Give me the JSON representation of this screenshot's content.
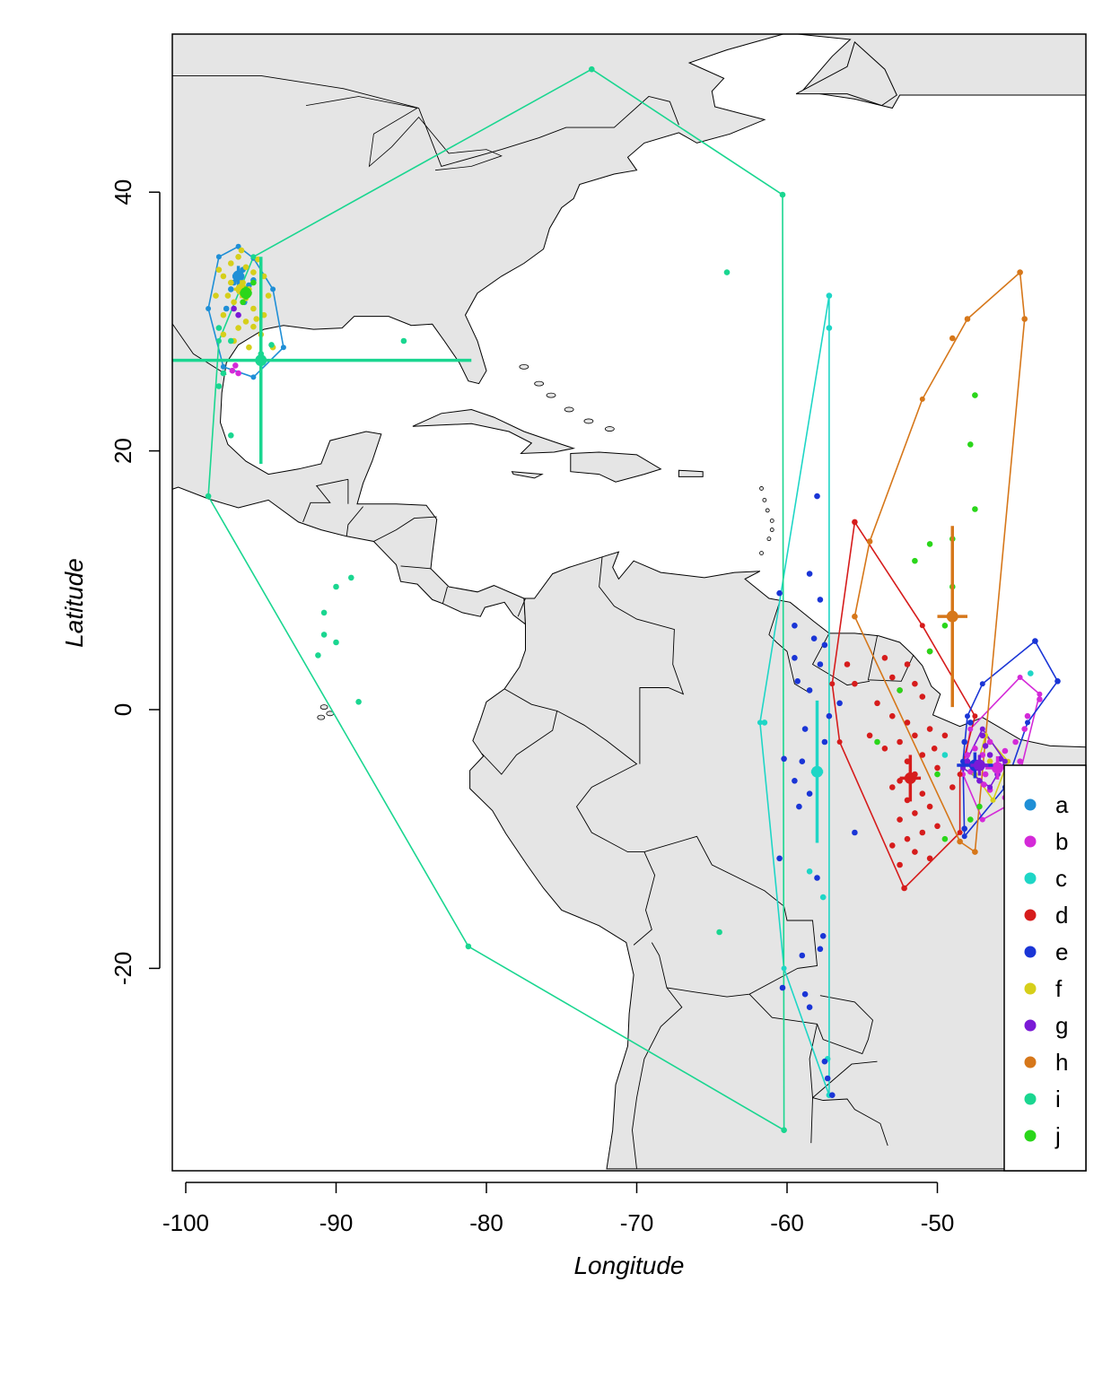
{
  "chart_data": {
    "type": "scatter",
    "xlabel": "Longitude",
    "ylabel": "Latitude",
    "xlim": [
      -101,
      -40
    ],
    "ylim": [
      -35.5,
      52.5
    ],
    "xticks": [
      "-100",
      "-90",
      "-80",
      "-70",
      "-60",
      "-50"
    ],
    "yticks": [
      "-20",
      "0",
      "20",
      "40"
    ],
    "legend_position": "bottom-right",
    "grid": false,
    "colors": {
      "land": "#e5e5e5",
      "coast": "#000000"
    },
    "series": [
      {
        "name": "a",
        "color": "#1f8fd6",
        "points": [
          [
            -96.5,
            33.5
          ],
          [
            -96.8,
            33.0
          ],
          [
            -95.8,
            32.8
          ],
          [
            -96.2,
            34.0
          ],
          [
            -97.0,
            32.5
          ],
          [
            -95.5,
            33.2
          ],
          [
            -96.1,
            31.5
          ],
          [
            -97.3,
            31.0
          ]
        ],
        "hull": [
          [
            -97.8,
            35.0
          ],
          [
            -96.5,
            35.8
          ],
          [
            -95.5,
            34.9
          ],
          [
            -94.2,
            32.5
          ],
          [
            -93.5,
            28.0
          ],
          [
            -95.5,
            25.7
          ],
          [
            -97.5,
            26.5
          ],
          [
            -98.5,
            31.0
          ]
        ],
        "mean": [
          -96.5,
          33.5
        ],
        "sd": [
          0.4,
          0.8
        ]
      },
      {
        "name": "b",
        "color": "#d42ad8",
        "points": [
          [
            -47.0,
            -3.5
          ],
          [
            -46.5,
            -2.5
          ],
          [
            -47.5,
            -3.0
          ],
          [
            -46.0,
            -4.5
          ],
          [
            -46.8,
            -5.0
          ],
          [
            -45.5,
            -3.2
          ],
          [
            -44.8,
            -2.5
          ],
          [
            -44.2,
            -1.5
          ],
          [
            -44.0,
            -0.5
          ],
          [
            -43.2,
            0.8
          ],
          [
            -45.0,
            -5.5
          ],
          [
            -46.5,
            -6.2
          ],
          [
            -47.8,
            -4.8
          ],
          [
            -48.0,
            -3.5
          ],
          [
            -45.5,
            -6.8
          ],
          [
            -46.9,
            -5.8
          ],
          [
            -44.5,
            -4.0
          ],
          [
            -96.7,
            26.6
          ],
          [
            -96.9,
            26.2
          ],
          [
            -96.5,
            26.0
          ]
        ],
        "hull": [
          [
            -44.5,
            2.5
          ],
          [
            -43.2,
            1.2
          ],
          [
            -45.0,
            -7.2
          ],
          [
            -47.0,
            -8.5
          ],
          [
            -48.3,
            -5.0
          ],
          [
            -47.8,
            -1.5
          ]
        ],
        "mean": [
          -46.0,
          -4.5
        ],
        "sd": [
          0.8,
          0.9
        ]
      },
      {
        "name": "c",
        "color": "#1ed6c6",
        "points": [
          [
            -57.2,
            32.0
          ],
          [
            -57.2,
            29.5
          ],
          [
            -58.0,
            -5.0
          ],
          [
            -58.5,
            -12.5
          ],
          [
            -57.6,
            -14.5
          ],
          [
            -57.3,
            -27.0
          ],
          [
            -57.2,
            -29.8
          ],
          [
            -61.5,
            -1.0
          ],
          [
            -49.5,
            -3.5
          ],
          [
            -43.8,
            2.8
          ],
          [
            -47.5,
            -4.2
          ]
        ],
        "hull": [
          [
            -57.2,
            32.0
          ],
          [
            -61.8,
            -1.0
          ],
          [
            -60.2,
            -20.0
          ],
          [
            -57.2,
            -29.8
          ]
        ],
        "mean": [
          -58.0,
          -4.8
        ],
        "sd": [
          0.4,
          5.5
        ]
      },
      {
        "name": "d",
        "color": "#d61c1c",
        "points": [
          [
            -55.5,
            14.5
          ],
          [
            -53.5,
            4.0
          ],
          [
            -52.0,
            3.5
          ],
          [
            -50.5,
            4.5
          ],
          [
            -53.0,
            2.5
          ],
          [
            -51.5,
            2.0
          ],
          [
            -52.5,
            1.5
          ],
          [
            -51.0,
            1.0
          ],
          [
            -54.0,
            0.5
          ],
          [
            -53.0,
            -0.5
          ],
          [
            -52.0,
            -1.0
          ],
          [
            -50.5,
            -1.5
          ],
          [
            -51.5,
            -2.0
          ],
          [
            -52.5,
            -2.5
          ],
          [
            -53.5,
            -3.0
          ],
          [
            -51.0,
            -3.5
          ],
          [
            -52.0,
            -4.0
          ],
          [
            -50.0,
            -4.5
          ],
          [
            -51.5,
            -5.0
          ],
          [
            -52.5,
            -5.5
          ],
          [
            -53.0,
            -6.0
          ],
          [
            -51.0,
            -6.5
          ],
          [
            -52.0,
            -7.0
          ],
          [
            -50.5,
            -7.5
          ],
          [
            -51.5,
            -8.0
          ],
          [
            -52.5,
            -8.5
          ],
          [
            -50.0,
            -9.0
          ],
          [
            -51.0,
            -9.5
          ],
          [
            -52.0,
            -10.0
          ],
          [
            -53.0,
            -10.5
          ],
          [
            -51.5,
            -11.0
          ],
          [
            -50.5,
            -11.5
          ],
          [
            -52.5,
            -12.0
          ],
          [
            -52.2,
            -13.8
          ],
          [
            -54.5,
            -2.0
          ],
          [
            -55.5,
            2.0
          ],
          [
            -56.0,
            3.5
          ],
          [
            -49.5,
            -2.0
          ],
          [
            -49.0,
            -6.0
          ],
          [
            -50.2,
            -3.0
          ]
        ],
        "hull": [
          [
            -55.5,
            14.5
          ],
          [
            -51.0,
            6.5
          ],
          [
            -47.5,
            -0.5
          ],
          [
            -48.5,
            -5.0
          ],
          [
            -48.5,
            -9.5
          ],
          [
            -52.2,
            -13.8
          ],
          [
            -56.5,
            -2.5
          ],
          [
            -57.0,
            2.0
          ]
        ],
        "mean": [
          -51.8,
          -5.3
        ],
        "sd": [
          0.7,
          1.8
        ]
      },
      {
        "name": "e",
        "color": "#1a35d6",
        "points": [
          [
            -58.0,
            16.5
          ],
          [
            -58.5,
            10.5
          ],
          [
            -57.8,
            8.5
          ],
          [
            -60.5,
            9.0
          ],
          [
            -59.5,
            6.5
          ],
          [
            -57.5,
            5.0
          ],
          [
            -58.2,
            5.5
          ],
          [
            -59.5,
            4.0
          ],
          [
            -57.8,
            3.5
          ],
          [
            -59.3,
            2.2
          ],
          [
            -58.5,
            1.5
          ],
          [
            -57.2,
            -0.5
          ],
          [
            -58.8,
            -1.5
          ],
          [
            -57.5,
            -2.5
          ],
          [
            -60.2,
            -3.8
          ],
          [
            -59.0,
            -4.0
          ],
          [
            -59.5,
            -5.5
          ],
          [
            -58.5,
            -6.5
          ],
          [
            -59.2,
            -7.5
          ],
          [
            -60.5,
            -11.5
          ],
          [
            -58.0,
            -13.0
          ],
          [
            -57.6,
            -17.5
          ],
          [
            -57.8,
            -18.5
          ],
          [
            -58.8,
            -22.0
          ],
          [
            -58.5,
            -23.0
          ],
          [
            -59.0,
            -19.0
          ],
          [
            -57.5,
            -27.2
          ],
          [
            -57.0,
            -29.8
          ],
          [
            -57.3,
            -28.5
          ],
          [
            -55.5,
            -9.5
          ],
          [
            -56.5,
            0.5
          ],
          [
            -60.3,
            -21.5
          ],
          [
            -47.8,
            -1.0
          ],
          [
            -48.2,
            -2.5
          ],
          [
            -43.5,
            5.3
          ],
          [
            -42.0,
            2.2
          ],
          [
            -48.2,
            -9.2
          ]
        ],
        "hull": [
          [
            -43.5,
            5.3
          ],
          [
            -42.0,
            2.2
          ],
          [
            -44.0,
            -1.0
          ],
          [
            -45.5,
            -6.0
          ],
          [
            -48.2,
            -9.8
          ],
          [
            -48.3,
            -4.0
          ],
          [
            -48.0,
            -0.5
          ],
          [
            -47.0,
            2.0
          ]
        ],
        "mean": [
          -47.5,
          -4.3
        ],
        "sd": [
          1.2,
          1.0
        ]
      },
      {
        "name": "f",
        "color": "#d6cf1a",
        "points": [
          [
            -97.0,
            34.5
          ],
          [
            -96.5,
            35.0
          ],
          [
            -96.0,
            34.2
          ],
          [
            -95.5,
            33.8
          ],
          [
            -97.5,
            33.5
          ],
          [
            -96.2,
            33.0
          ],
          [
            -95.8,
            32.5
          ],
          [
            -97.2,
            32.0
          ],
          [
            -96.8,
            31.5
          ],
          [
            -95.5,
            31.0
          ],
          [
            -94.8,
            30.5
          ],
          [
            -96.0,
            30.0
          ],
          [
            -97.5,
            30.5
          ],
          [
            -98.0,
            32.0
          ],
          [
            -96.5,
            29.5
          ],
          [
            -95.0,
            29.0
          ],
          [
            -94.5,
            32.0
          ],
          [
            -94.8,
            33.5
          ],
          [
            -97.8,
            34.0
          ],
          [
            -96.3,
            35.5
          ],
          [
            -95.2,
            34.8
          ],
          [
            -97.0,
            33.0
          ],
          [
            -96.0,
            31.8
          ],
          [
            -95.3,
            30.2
          ],
          [
            -96.8,
            28.5
          ],
          [
            -95.8,
            28.0
          ],
          [
            -94.2,
            28.0
          ],
          [
            -97.5,
            29.0
          ],
          [
            -96.0,
            32.2
          ],
          [
            -95.5,
            29.6
          ],
          [
            -46.5,
            -4.0
          ],
          [
            -45.8,
            -4.5
          ]
        ],
        "hull": [
          [
            -46.8,
            -2.0
          ],
          [
            -45.3,
            -4.0
          ],
          [
            -46.3,
            -7.0
          ],
          [
            -47.5,
            -5.0
          ]
        ],
        "mean": [
          -96.3,
          32.5
        ],
        "sd": [
          0.5,
          0.7
        ]
      },
      {
        "name": "g",
        "color": "#7a1ad6",
        "points": [
          [
            -96.5,
            30.5
          ],
          [
            -96.8,
            31.0
          ],
          [
            -47.0,
            -2.0
          ],
          [
            -46.5,
            -3.5
          ],
          [
            -47.5,
            -4.5
          ],
          [
            -46.0,
            -5.0
          ],
          [
            -47.2,
            -5.5
          ],
          [
            -46.8,
            -2.8
          ],
          [
            -45.8,
            -3.8
          ],
          [
            -48.0,
            -4.0
          ]
        ],
        "hull": [
          [
            -47.0,
            -1.5
          ],
          [
            -45.5,
            -4.0
          ],
          [
            -46.5,
            -6.0
          ],
          [
            -48.3,
            -4.5
          ]
        ],
        "mean": [
          -47.2,
          -4.3
        ],
        "sd": [
          0.6,
          0.8
        ]
      },
      {
        "name": "h",
        "color": "#d6771a",
        "points": [
          [
            -44.5,
            33.8
          ],
          [
            -44.2,
            30.2
          ],
          [
            -48.0,
            30.2
          ],
          [
            -49.0,
            28.7
          ],
          [
            -55.5,
            7.2
          ],
          [
            -54.5,
            13.0
          ],
          [
            -47.5,
            -11.0
          ],
          [
            -48.5,
            -10.2
          ]
        ],
        "hull": [
          [
            -44.5,
            33.8
          ],
          [
            -44.2,
            30.2
          ],
          [
            -47.5,
            -11.0
          ],
          [
            -48.5,
            -10.2
          ],
          [
            -55.5,
            7.2
          ],
          [
            -54.5,
            13.0
          ],
          [
            -51.0,
            24.0
          ],
          [
            -48.0,
            30.2
          ]
        ],
        "mean": [
          -49.0,
          7.2
        ],
        "sd": [
          1.0,
          7.0
        ]
      },
      {
        "name": "i",
        "color": "#1ad690",
        "points": [
          [
            -73.0,
            49.5
          ],
          [
            -60.3,
            39.8
          ],
          [
            -64.0,
            33.8
          ],
          [
            -85.5,
            28.5
          ],
          [
            -98.5,
            16.5
          ],
          [
            -90.0,
            9.5
          ],
          [
            -89.0,
            10.2
          ],
          [
            -90.8,
            7.5
          ],
          [
            -90.8,
            5.8
          ],
          [
            -90.0,
            5.2
          ],
          [
            -91.2,
            4.2
          ],
          [
            -88.5,
            0.6
          ],
          [
            -81.2,
            -18.3
          ],
          [
            -64.5,
            -17.2
          ],
          [
            -60.2,
            -32.5
          ],
          [
            -97.5,
            26.0
          ],
          [
            -97.8,
            25.0
          ],
          [
            -97.0,
            28.5
          ],
          [
            -97.8,
            29.5
          ],
          [
            -94.3,
            28.2
          ],
          [
            -97.0,
            21.2
          ],
          [
            -95.0,
            27.5
          ]
        ],
        "hull": [
          [
            -73.0,
            49.5
          ],
          [
            -60.3,
            39.8
          ],
          [
            -60.2,
            -32.5
          ],
          [
            -81.2,
            -18.3
          ],
          [
            -98.5,
            16.5
          ],
          [
            -97.8,
            28.5
          ],
          [
            -95.5,
            35.0
          ]
        ],
        "mean": [
          -95.0,
          27.0
        ],
        "sd": [
          14.0,
          8.0
        ]
      },
      {
        "name": "j",
        "color": "#2ad61a",
        "points": [
          [
            -96.2,
            31.5
          ],
          [
            -96.0,
            32.2
          ],
          [
            -95.5,
            33.0
          ],
          [
            -47.5,
            24.3
          ],
          [
            -47.8,
            20.5
          ],
          [
            -47.5,
            15.5
          ],
          [
            -49.0,
            13.2
          ],
          [
            -50.5,
            12.8
          ],
          [
            -51.5,
            11.5
          ],
          [
            -49.0,
            9.5
          ],
          [
            -49.5,
            6.5
          ],
          [
            -50.5,
            4.5
          ],
          [
            -52.5,
            1.5
          ],
          [
            -54.0,
            -2.5
          ],
          [
            -50.0,
            -5.0
          ],
          [
            -47.8,
            -8.5
          ],
          [
            -49.5,
            -10.0
          ],
          [
            -47.2,
            -7.5
          ]
        ],
        "hull": [],
        "mean": [
          -96.0,
          32.2
        ],
        "sd": [
          0.4,
          0.5
        ]
      }
    ]
  }
}
